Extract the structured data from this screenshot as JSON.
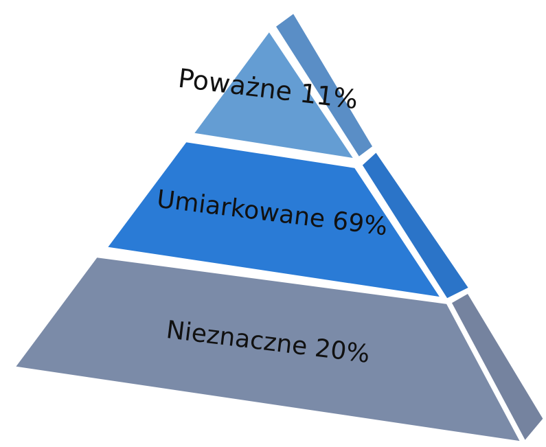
{
  "levels": [
    {
      "label": "Poważne 11%"
    },
    {
      "label": "Umiarkowane 69%"
    },
    {
      "label": "Nieznaczne 20%"
    }
  ]
}
